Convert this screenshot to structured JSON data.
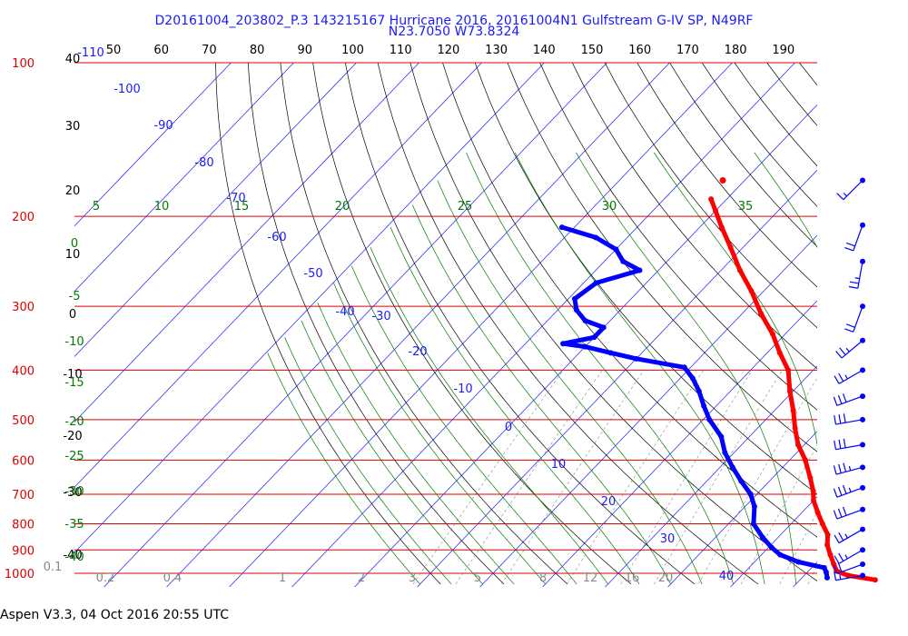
{
  "header": {
    "line1": "D20161004_203802_P.3 143215167 Hurricane 2016, 20161004N1 Gulfstream G-IV SP, N49RF",
    "line2": "N23.7050 W73.8324"
  },
  "footer": {
    "text": "Aspen V3.3, 04 Oct 2016  20:55 UTC"
  },
  "colors": {
    "isobar": "#dd0000",
    "isotherm": "#1a1aff",
    "dry_adiabat": "#000000",
    "moist_adiabat": "#007a00",
    "mixing_ratio": "#888888",
    "temperature": "#ff0000",
    "dewpoint": "#0000ff",
    "wind": "#0000ff"
  },
  "chart_data": {
    "type": "skew-t log-p",
    "pressure_ticks": [
      "100",
      "200",
      "300",
      "400",
      "500",
      "600",
      "700",
      "800",
      "900",
      "1000"
    ],
    "pressure_range_hpa": [
      100,
      1050
    ],
    "top_temperature_ticks": [
      "50",
      "60",
      "70",
      "80",
      "90",
      "100",
      "110",
      "120",
      "130",
      "140",
      "150",
      "160",
      "170",
      "180",
      "190"
    ],
    "isotherm_labels": [
      "-110",
      "-100",
      "-90",
      "-80",
      "-70",
      "-60",
      "-50",
      "-40",
      "-30",
      "-20",
      "-10",
      "0",
      "10",
      "20",
      "30",
      "40"
    ],
    "left_black_labels": [
      "40",
      "30",
      "20",
      "10",
      "0",
      "-10",
      "-20",
      "-30",
      "-40"
    ],
    "left_green_labels": [
      "0",
      "-5",
      "-10",
      "-15",
      "-20",
      "-25",
      "-30",
      "-35",
      "-40"
    ],
    "top_green_labels": [
      "5",
      "10",
      "15",
      "20",
      "25",
      "30",
      "35"
    ],
    "mixing_ratio_labels": [
      "0.1",
      "0.2",
      "0.4",
      "1",
      "2",
      "3",
      "5",
      "8",
      "12",
      "16",
      "20"
    ],
    "temperature_profile": [
      {
        "p": 1030,
        "t": 32.0
      },
      {
        "p": 1010,
        "t": 27.0
      },
      {
        "p": 990,
        "t": 24.5
      },
      {
        "p": 960,
        "t": 23.0
      },
      {
        "p": 920,
        "t": 21.0
      },
      {
        "p": 880,
        "t": 19.0
      },
      {
        "p": 840,
        "t": 17.5
      },
      {
        "p": 800,
        "t": 15.0
      },
      {
        "p": 760,
        "t": 12.5
      },
      {
        "p": 720,
        "t": 10.0
      },
      {
        "p": 690,
        "t": 8.5
      },
      {
        "p": 650,
        "t": 6.0
      },
      {
        "p": 600,
        "t": 2.5
      },
      {
        "p": 560,
        "t": -1.0
      },
      {
        "p": 520,
        "t": -4.0
      },
      {
        "p": 480,
        "t": -7.0
      },
      {
        "p": 440,
        "t": -10.5
      },
      {
        "p": 400,
        "t": -14.0
      },
      {
        "p": 370,
        "t": -18.0
      },
      {
        "p": 340,
        "t": -22.0
      },
      {
        "p": 310,
        "t": -27.0
      },
      {
        "p": 280,
        "t": -32.0
      },
      {
        "p": 255,
        "t": -37.0
      },
      {
        "p": 230,
        "t": -42.0
      },
      {
        "p": 210,
        "t": -46.5
      },
      {
        "p": 195,
        "t": -50.0
      },
      {
        "p": 185,
        "t": -52.5
      }
    ],
    "dewpoint_profile": [
      {
        "p": 1020,
        "t": 24.0
      },
      {
        "p": 995,
        "t": 23.0
      },
      {
        "p": 975,
        "t": 22.0
      },
      {
        "p": 950,
        "t": 17.0
      },
      {
        "p": 920,
        "t": 13.0
      },
      {
        "p": 890,
        "t": 10.5
      },
      {
        "p": 850,
        "t": 7.5
      },
      {
        "p": 800,
        "t": 4.0
      },
      {
        "p": 740,
        "t": 1.5
      },
      {
        "p": 700,
        "t": -1.0
      },
      {
        "p": 660,
        "t": -4.5
      },
      {
        "p": 620,
        "t": -8.0
      },
      {
        "p": 580,
        "t": -11.5
      },
      {
        "p": 540,
        "t": -14.5
      },
      {
        "p": 500,
        "t": -19.0
      },
      {
        "p": 470,
        "t": -22.0
      },
      {
        "p": 440,
        "t": -25.0
      },
      {
        "p": 415,
        "t": -28.0
      },
      {
        "p": 395,
        "t": -31.0
      },
      {
        "p": 380,
        "t": -40.0
      },
      {
        "p": 370,
        "t": -45.0
      },
      {
        "p": 360,
        "t": -50.0
      },
      {
        "p": 355,
        "t": -54.0
      },
      {
        "p": 345,
        "t": -50.0
      },
      {
        "p": 330,
        "t": -50.0
      },
      {
        "p": 320,
        "t": -54.0
      },
      {
        "p": 305,
        "t": -57.0
      },
      {
        "p": 290,
        "t": -59.0
      },
      {
        "p": 270,
        "t": -58.0
      },
      {
        "p": 255,
        "t": -53.0
      },
      {
        "p": 245,
        "t": -57.0
      },
      {
        "p": 232,
        "t": -60.0
      },
      {
        "p": 220,
        "t": -65.0
      },
      {
        "p": 210,
        "t": -72.0
      }
    ],
    "isolated_temperature_point": {
      "p": 170,
      "t": -53.5
    },
    "wind_barbs": [
      {
        "p": 170,
        "speed_kt": 15,
        "dir_deg": 225
      },
      {
        "p": 208,
        "speed_kt": 20,
        "dir_deg": 200
      },
      {
        "p": 245,
        "speed_kt": 25,
        "dir_deg": 190
      },
      {
        "p": 300,
        "speed_kt": 20,
        "dir_deg": 200
      },
      {
        "p": 350,
        "speed_kt": 25,
        "dir_deg": 230
      },
      {
        "p": 400,
        "speed_kt": 25,
        "dir_deg": 240
      },
      {
        "p": 450,
        "speed_kt": 30,
        "dir_deg": 250
      },
      {
        "p": 500,
        "speed_kt": 30,
        "dir_deg": 260
      },
      {
        "p": 560,
        "speed_kt": 30,
        "dir_deg": 260
      },
      {
        "p": 620,
        "speed_kt": 35,
        "dir_deg": 255
      },
      {
        "p": 680,
        "speed_kt": 35,
        "dir_deg": 250
      },
      {
        "p": 750,
        "speed_kt": 30,
        "dir_deg": 250
      },
      {
        "p": 820,
        "speed_kt": 25,
        "dir_deg": 240
      },
      {
        "p": 900,
        "speed_kt": 25,
        "dir_deg": 240
      },
      {
        "p": 960,
        "speed_kt": 20,
        "dir_deg": 250
      },
      {
        "p": 1010,
        "speed_kt": 15,
        "dir_deg": 260
      }
    ]
  }
}
